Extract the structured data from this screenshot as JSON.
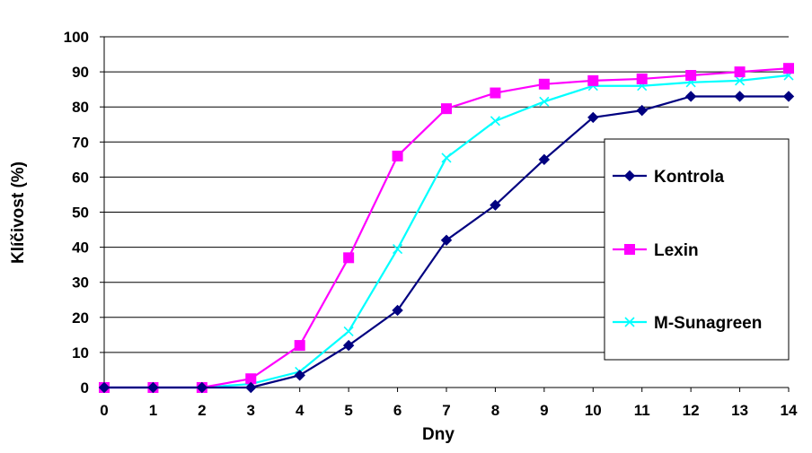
{
  "chart_data": {
    "type": "line",
    "title": "",
    "xlabel": "Dny",
    "ylabel": "Klíčivost (%)",
    "x": [
      0,
      1,
      2,
      3,
      4,
      5,
      6,
      7,
      8,
      9,
      10,
      11,
      12,
      13,
      14
    ],
    "xlim": [
      0,
      14
    ],
    "ylim": [
      0,
      100
    ],
    "ytick_step": 10,
    "grid": "horizontal",
    "legend_position": "right",
    "series": [
      {
        "name": "Kontrola",
        "color": "#000080",
        "marker": "diamond",
        "values": [
          0,
          0,
          0,
          0,
          3.5,
          12,
          22,
          42,
          52,
          65,
          77,
          79,
          83,
          83,
          83
        ]
      },
      {
        "name": "Lexin",
        "color": "#FF00FF",
        "marker": "square",
        "values": [
          0,
          0,
          0,
          2.5,
          12,
          37,
          66,
          79.5,
          84,
          86.5,
          87.5,
          88,
          89,
          90,
          91
        ]
      },
      {
        "name": "M-Sunagreen",
        "color": "#00FFFF",
        "marker": "x",
        "values": [
          0,
          0,
          0,
          1,
          4.5,
          16,
          39.5,
          65.5,
          76,
          81.5,
          86,
          86,
          87,
          87.5,
          89
        ]
      }
    ]
  }
}
